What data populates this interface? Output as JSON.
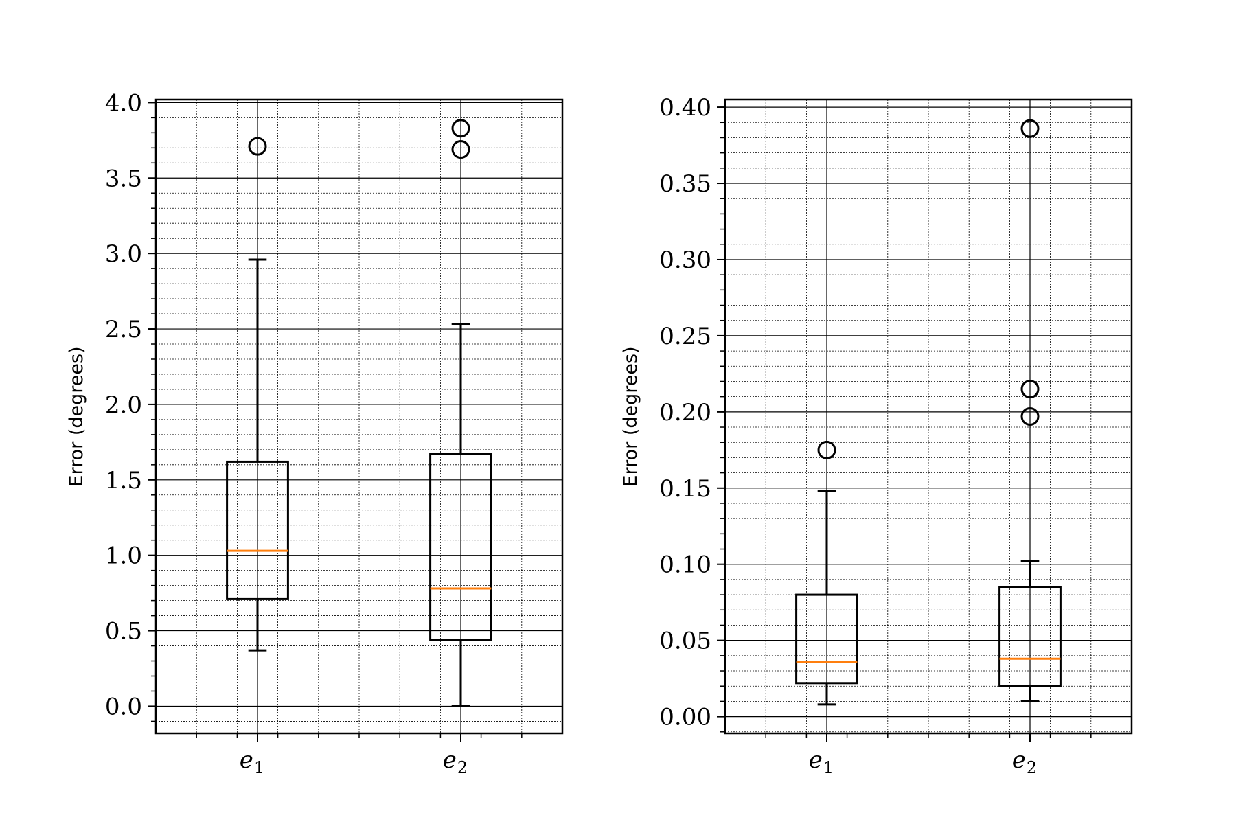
{
  "chart_data": [
    {
      "type": "box",
      "title": "",
      "xlabel": "",
      "ylabel": "Error (degrees)",
      "ylim": [
        -0.18,
        4.02
      ],
      "yticks": [
        0.0,
        0.5,
        1.0,
        1.5,
        2.0,
        2.5,
        3.0,
        3.5,
        4.0
      ],
      "ytick_labels": [
        "0.0",
        "0.5",
        "1.0",
        "1.5",
        "2.0",
        "2.5",
        "3.0",
        "3.5",
        "4.0"
      ],
      "grid": "major and minor",
      "categories": [
        {
          "base": "e",
          "sub": "1"
        },
        {
          "base": "e",
          "sub": "2"
        }
      ],
      "boxes": [
        {
          "whisker_low": 0.37,
          "q1": 0.71,
          "median": 1.03,
          "q3": 1.62,
          "whisker_high": 2.96,
          "outliers": [
            3.71
          ]
        },
        {
          "whisker_low": 0.0,
          "q1": 0.44,
          "median": 0.78,
          "q3": 1.67,
          "whisker_high": 2.53,
          "outliers": [
            3.83,
            3.69
          ]
        }
      ]
    },
    {
      "type": "box",
      "title": "",
      "xlabel": "",
      "ylabel": "Error (degrees)",
      "ylim": [
        -0.011,
        0.405
      ],
      "yticks": [
        0.0,
        0.05,
        0.1,
        0.15,
        0.2,
        0.25,
        0.3,
        0.35,
        0.4
      ],
      "ytick_labels": [
        "0.00",
        "0.05",
        "0.10",
        "0.15",
        "0.20",
        "0.25",
        "0.30",
        "0.35",
        "0.40"
      ],
      "grid": "major and minor",
      "categories": [
        {
          "base": "e",
          "sub": "1"
        },
        {
          "base": "e",
          "sub": "2"
        }
      ],
      "boxes": [
        {
          "whisker_low": 0.008,
          "q1": 0.022,
          "median": 0.036,
          "q3": 0.08,
          "whisker_high": 0.148,
          "outliers": [
            0.175
          ]
        },
        {
          "whisker_low": 0.01,
          "q1": 0.02,
          "median": 0.038,
          "q3": 0.085,
          "whisker_high": 0.102,
          "outliers": [
            0.386,
            0.215,
            0.197
          ]
        }
      ]
    }
  ],
  "colors": {
    "box": "#000000",
    "median": "#ff7f0e",
    "grid_major": "#000000",
    "grid_minor": "#000000"
  }
}
